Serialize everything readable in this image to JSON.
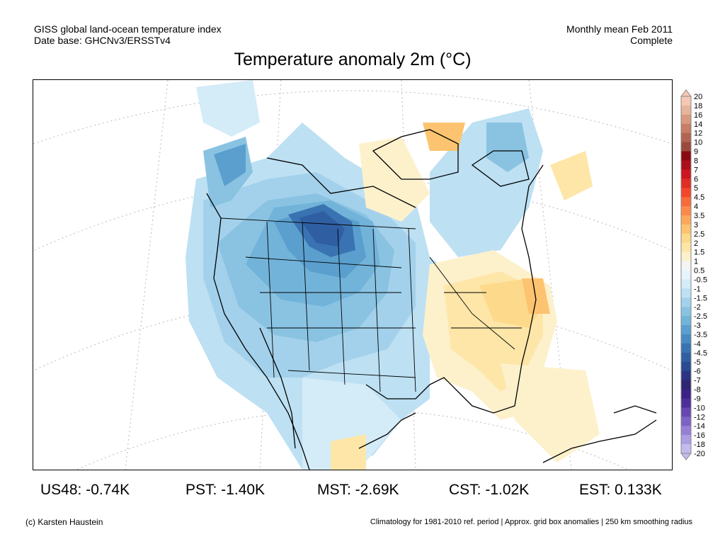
{
  "header": {
    "source_line1": "GISS global land-ocean temperature index",
    "source_line2": "Date base: GHCNv3/ERSSTv4",
    "period_line1": "Monthly mean Feb 2011",
    "period_line2": "Complete"
  },
  "title": "Temperature anomaly 2m (°C)",
  "legend": {
    "labels": [
      "20",
      "18",
      "16",
      "14",
      "12",
      "10",
      "9",
      "8",
      "7",
      "6",
      "5",
      "4.5",
      "4",
      "3.5",
      "3",
      "2.5",
      "2",
      "1.5",
      "1",
      "0.5",
      "-0.5",
      "-1",
      "-1.5",
      "-2",
      "-2.5",
      "-3",
      "-3.5",
      "-4",
      "-4.5",
      "-5",
      "-6",
      "-7",
      "-8",
      "-9",
      "-10",
      "-12",
      "-14",
      "-16",
      "-18",
      "-20"
    ],
    "colors": [
      "#f5c8b4",
      "#e8b49b",
      "#d89a7f",
      "#c67e66",
      "#b26552",
      "#9b4a3e",
      "#8a0a12",
      "#ad0f1c",
      "#cd1622",
      "#e22b24",
      "#f2452c",
      "#f76a3b",
      "#fa8a4a",
      "#fba85a",
      "#fcc470",
      "#fdd98c",
      "#fde6a8",
      "#fdf1cc",
      "#f5f5f5",
      "#e8f4fc",
      "#d4ebf8",
      "#bde0f3",
      "#a3d1eb",
      "#8ac3e2",
      "#72b3d9",
      "#5a9fce",
      "#478bc1",
      "#3a73b2",
      "#2f5ea3",
      "#2a4a93",
      "#2b3583",
      "#2f2670",
      "#3a2385",
      "#4d2f9a",
      "#6646b0",
      "#7d62c5",
      "#9680d6",
      "#ad9ee3",
      "#c3bbed"
    ]
  },
  "stats": {
    "us48": "US48: -0.74K",
    "pst": "PST: -1.40K",
    "mst": "MST: -2.69K",
    "cst": "CST: -1.02K",
    "est": "EST: 0.133K"
  },
  "footer": {
    "credit": "(c) Karsten Haustein",
    "note": "Climatology for 1981-2010 ref. period | Approx. grid box anomalies | 250 km smoothing radius"
  }
}
